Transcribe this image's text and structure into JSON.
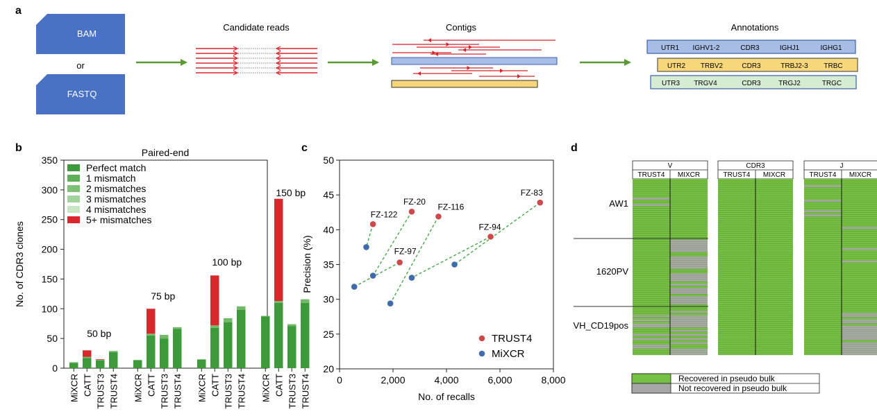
{
  "panel_a": {
    "label": "a",
    "input1": "BAM",
    "or": "or",
    "input2": "FASTQ",
    "step1": "Candidate reads",
    "step2": "Contigs",
    "step3": "Annotations",
    "rows": [
      [
        "UTR1",
        "IGHV1-2",
        "CDR3",
        "IGHJ1",
        "IGHG1"
      ],
      [
        "UTR2",
        "TRBV2",
        "CDR3",
        "TRBJ2-3",
        "TRBC"
      ],
      [
        "UTR3",
        "TRGV4",
        "CDR3",
        "TRGJ2",
        "TRGC"
      ]
    ],
    "colors": {
      "blue": "#4a72c4",
      "arrow": "#5a9a32",
      "red": "#d8232a",
      "bar_blue": "#a8bde6",
      "bar_yellow": "#f7d77a",
      "bar_green": "#d6ecd2"
    }
  },
  "chart_data": [
    {
      "panel": "b",
      "type": "bar",
      "title": "Paired-end",
      "ylabel": "No. of CDR3 clones",
      "ylim": [
        0,
        350
      ],
      "yticks": [
        0,
        50,
        100,
        150,
        200,
        250,
        300,
        350
      ],
      "legend": [
        "Perfect match",
        "1 mismatch",
        "2 mismatches",
        "3 mismatches",
        "4 mismatches",
        "5+ mismatches"
      ],
      "legend_colors": [
        "#3d9a3a",
        "#5eaf57",
        "#7fc077",
        "#a3d39c",
        "#c8e6c2",
        "#d8282c"
      ],
      "groups": [
        {
          "label": "50 bp",
          "bars": [
            {
              "name": "MiXCR",
              "perfect": 9,
              "mis": 1,
              "red": 0
            },
            {
              "name": "CATT",
              "perfect": 17,
              "mis": 2,
              "red": 11
            },
            {
              "name": "TRUST3",
              "perfect": 13,
              "mis": 1,
              "red": 1
            },
            {
              "name": "TRUST4",
              "perfect": 27,
              "mis": 2,
              "red": 0
            }
          ]
        },
        {
          "label": "75 bp",
          "bars": [
            {
              "name": "MiXCR",
              "perfect": 13,
              "mis": 1,
              "red": 0
            },
            {
              "name": "CATT",
              "perfect": 55,
              "mis": 3,
              "red": 42
            },
            {
              "name": "TRUST3",
              "perfect": 50,
              "mis": 6,
              "red": 0
            },
            {
              "name": "TRUST4",
              "perfect": 66,
              "mis": 3,
              "red": 0
            }
          ]
        },
        {
          "label": "100 bp",
          "bars": [
            {
              "name": "MiXCR",
              "perfect": 14,
              "mis": 1,
              "red": 0
            },
            {
              "name": "CATT",
              "perfect": 68,
              "mis": 4,
              "red": 84
            },
            {
              "name": "TRUST3",
              "perfect": 77,
              "mis": 7,
              "red": 0
            },
            {
              "name": "TRUST4",
              "perfect": 98,
              "mis": 6,
              "red": 0
            }
          ]
        },
        {
          "label": "150 bp",
          "bars": [
            {
              "name": "MiXCR",
              "perfect": 87,
              "mis": 1,
              "red": 0
            },
            {
              "name": "CATT",
              "perfect": 110,
              "mis": 3,
              "red": 172
            },
            {
              "name": "TRUST3",
              "perfect": 71,
              "mis": 3,
              "red": 0
            },
            {
              "name": "TRUST4",
              "perfect": 110,
              "mis": 6,
              "red": 0
            }
          ]
        }
      ]
    },
    {
      "panel": "c",
      "type": "scatter",
      "xlabel": "No. of recalls",
      "ylabel": "Precision (%)",
      "xlim": [
        0,
        8000
      ],
      "ylim": [
        20,
        50
      ],
      "xticks": [
        0,
        2000,
        4000,
        6000,
        8000
      ],
      "xtick_labels": [
        "0",
        "2,000",
        "4,000",
        "6,000",
        "8,000"
      ],
      "yticks": [
        20,
        25,
        30,
        35,
        40,
        45,
        50
      ],
      "series": [
        {
          "name": "TRUST4",
          "color": "#cc4a4a"
        },
        {
          "name": "MiXCR",
          "color": "#3f6aab"
        }
      ],
      "pairs": [
        {
          "label": "FZ-122",
          "trust4": [
            1250,
            40.8
          ],
          "mixcr": [
            1000,
            37.5
          ]
        },
        {
          "label": "FZ-97",
          "trust4": [
            2250,
            35.3
          ],
          "mixcr": [
            550,
            31.8
          ]
        },
        {
          "label": "FZ-20",
          "trust4": [
            2700,
            42.6
          ],
          "mixcr": [
            1250,
            33.4
          ]
        },
        {
          "label": "FZ-116",
          "trust4": [
            3700,
            41.9
          ],
          "mixcr": [
            1900,
            29.4
          ]
        },
        {
          "label": "FZ-94",
          "trust4": [
            5650,
            39.0
          ],
          "mixcr": [
            2700,
            33.1
          ]
        },
        {
          "label": "FZ-83",
          "trust4": [
            7500,
            43.9
          ],
          "mixcr": [
            4300,
            35.0
          ]
        }
      ]
    }
  ],
  "panel_d": {
    "label": "d",
    "blocks": [
      "V",
      "CDR3",
      "J"
    ],
    "cols": [
      "TRUST4",
      "MIXCR"
    ],
    "samples": [
      "AW1",
      "1620PV",
      "VH_CD19pos"
    ],
    "legend": [
      "Recovered in pseudo bulk",
      "Not recovered in pseudo bulk"
    ],
    "colors": {
      "green": "#76c043",
      "gray": "#a7a7a7"
    }
  },
  "panel_b_label": "b",
  "panel_c_label": "c"
}
